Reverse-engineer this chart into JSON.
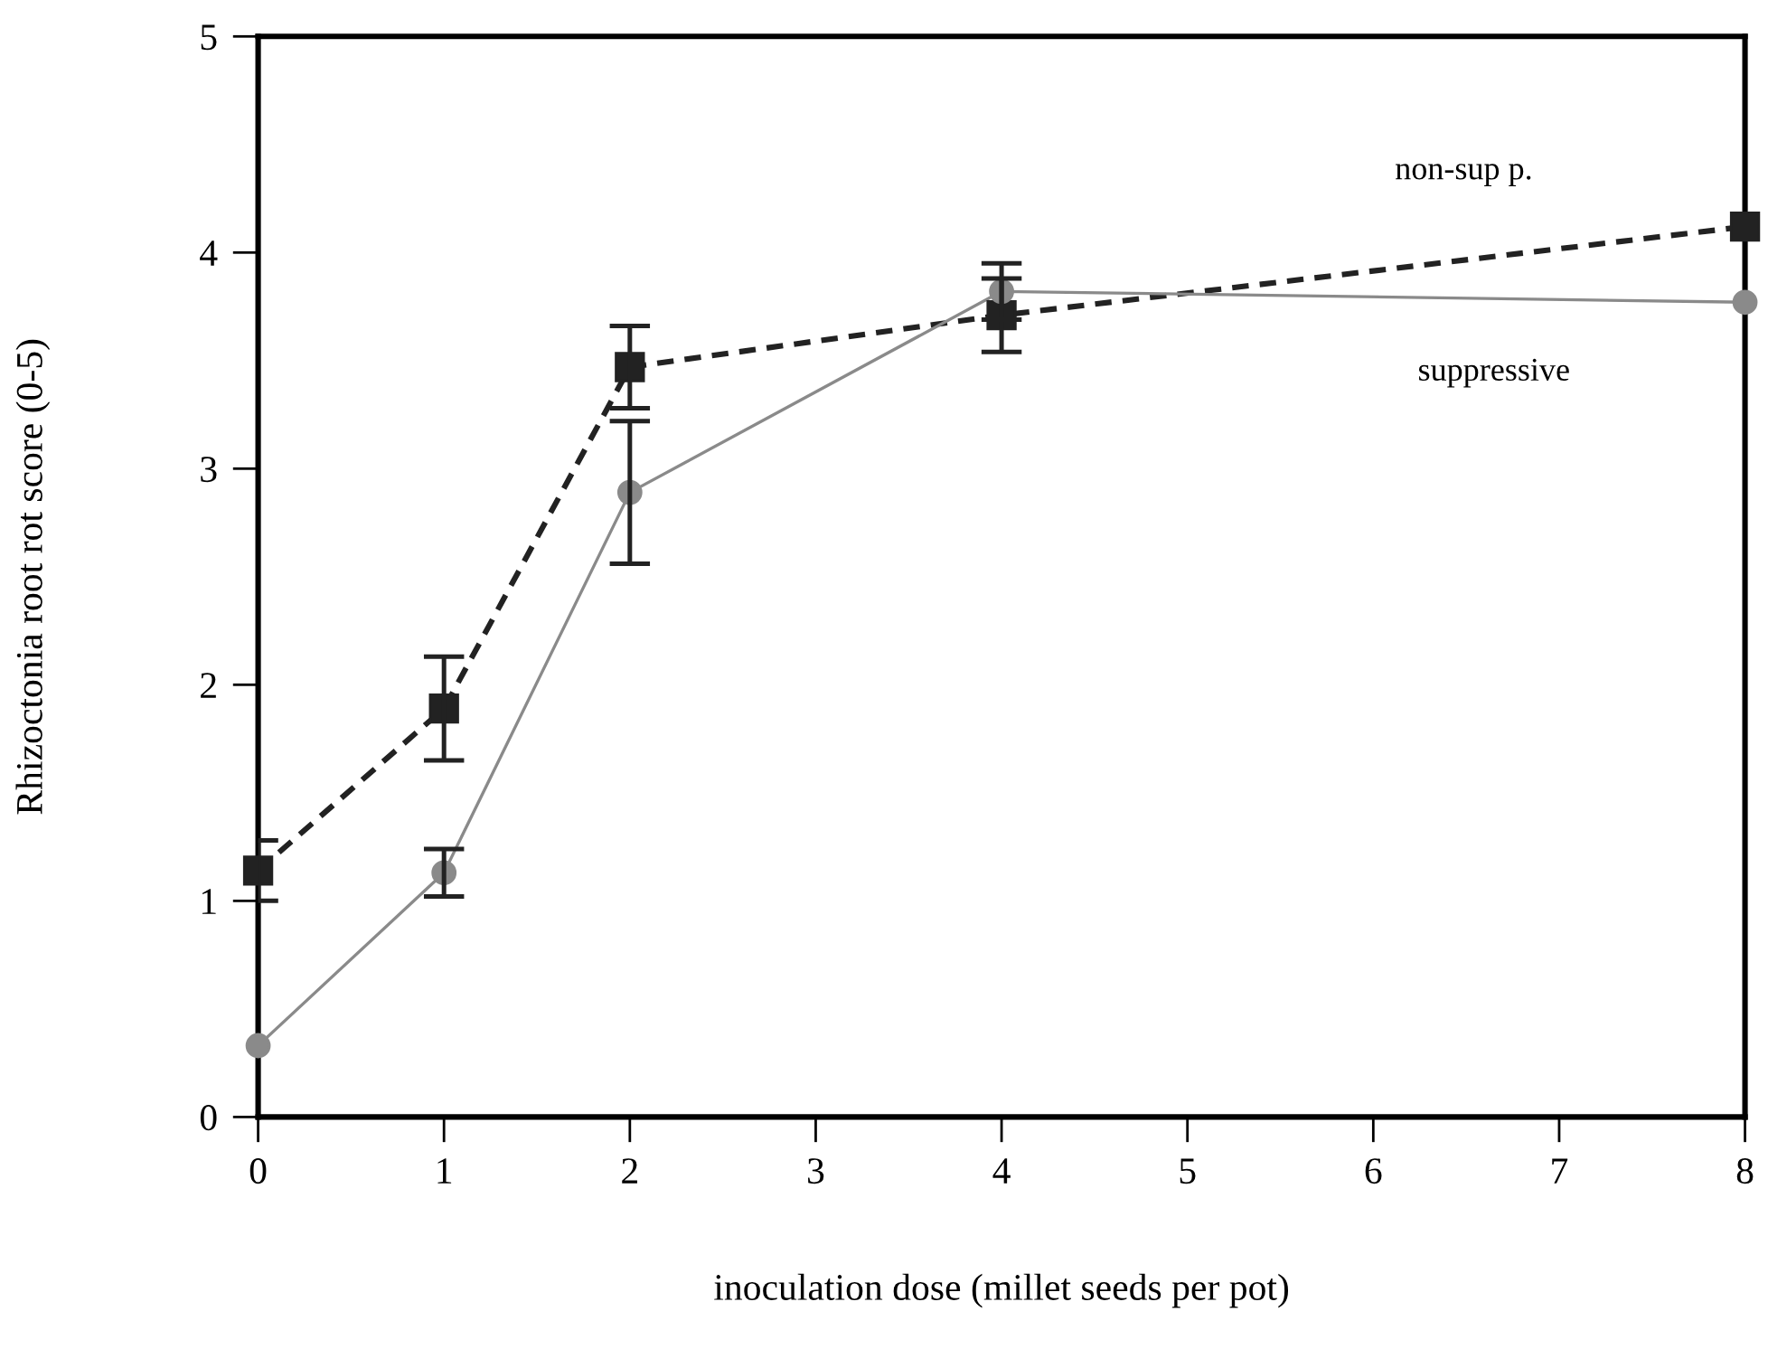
{
  "chart_data": {
    "type": "line",
    "xlabel": "inoculation dose (millet seeds per pot)",
    "ylabel": "Rhizoctonia root rot score (0-5)",
    "x": [
      0,
      1,
      2,
      4,
      8
    ],
    "series": [
      {
        "name": "non-sup p.",
        "color": "#222222",
        "values": [
          1.14,
          1.89,
          3.47,
          3.71,
          4.12
        ],
        "errors": [
          0.14,
          0.24,
          0.19,
          0.17,
          null
        ],
        "marker": "square",
        "line_style": "dashed"
      },
      {
        "name": "suppressive",
        "color": "#8a8a8a",
        "values": [
          0.33,
          1.13,
          2.89,
          3.82,
          3.77
        ],
        "errors": [
          null,
          0.11,
          0.33,
          0.13,
          null
        ],
        "marker": "circle",
        "line_style": "solid"
      }
    ],
    "xlim": [
      0,
      8
    ],
    "xticks": [
      0,
      1,
      2,
      3,
      4,
      5,
      6,
      7,
      8
    ],
    "ylim": [
      0,
      5
    ],
    "yticks": [
      0,
      1,
      2,
      3,
      4,
      5
    ],
    "grid": false,
    "legend": false
  }
}
